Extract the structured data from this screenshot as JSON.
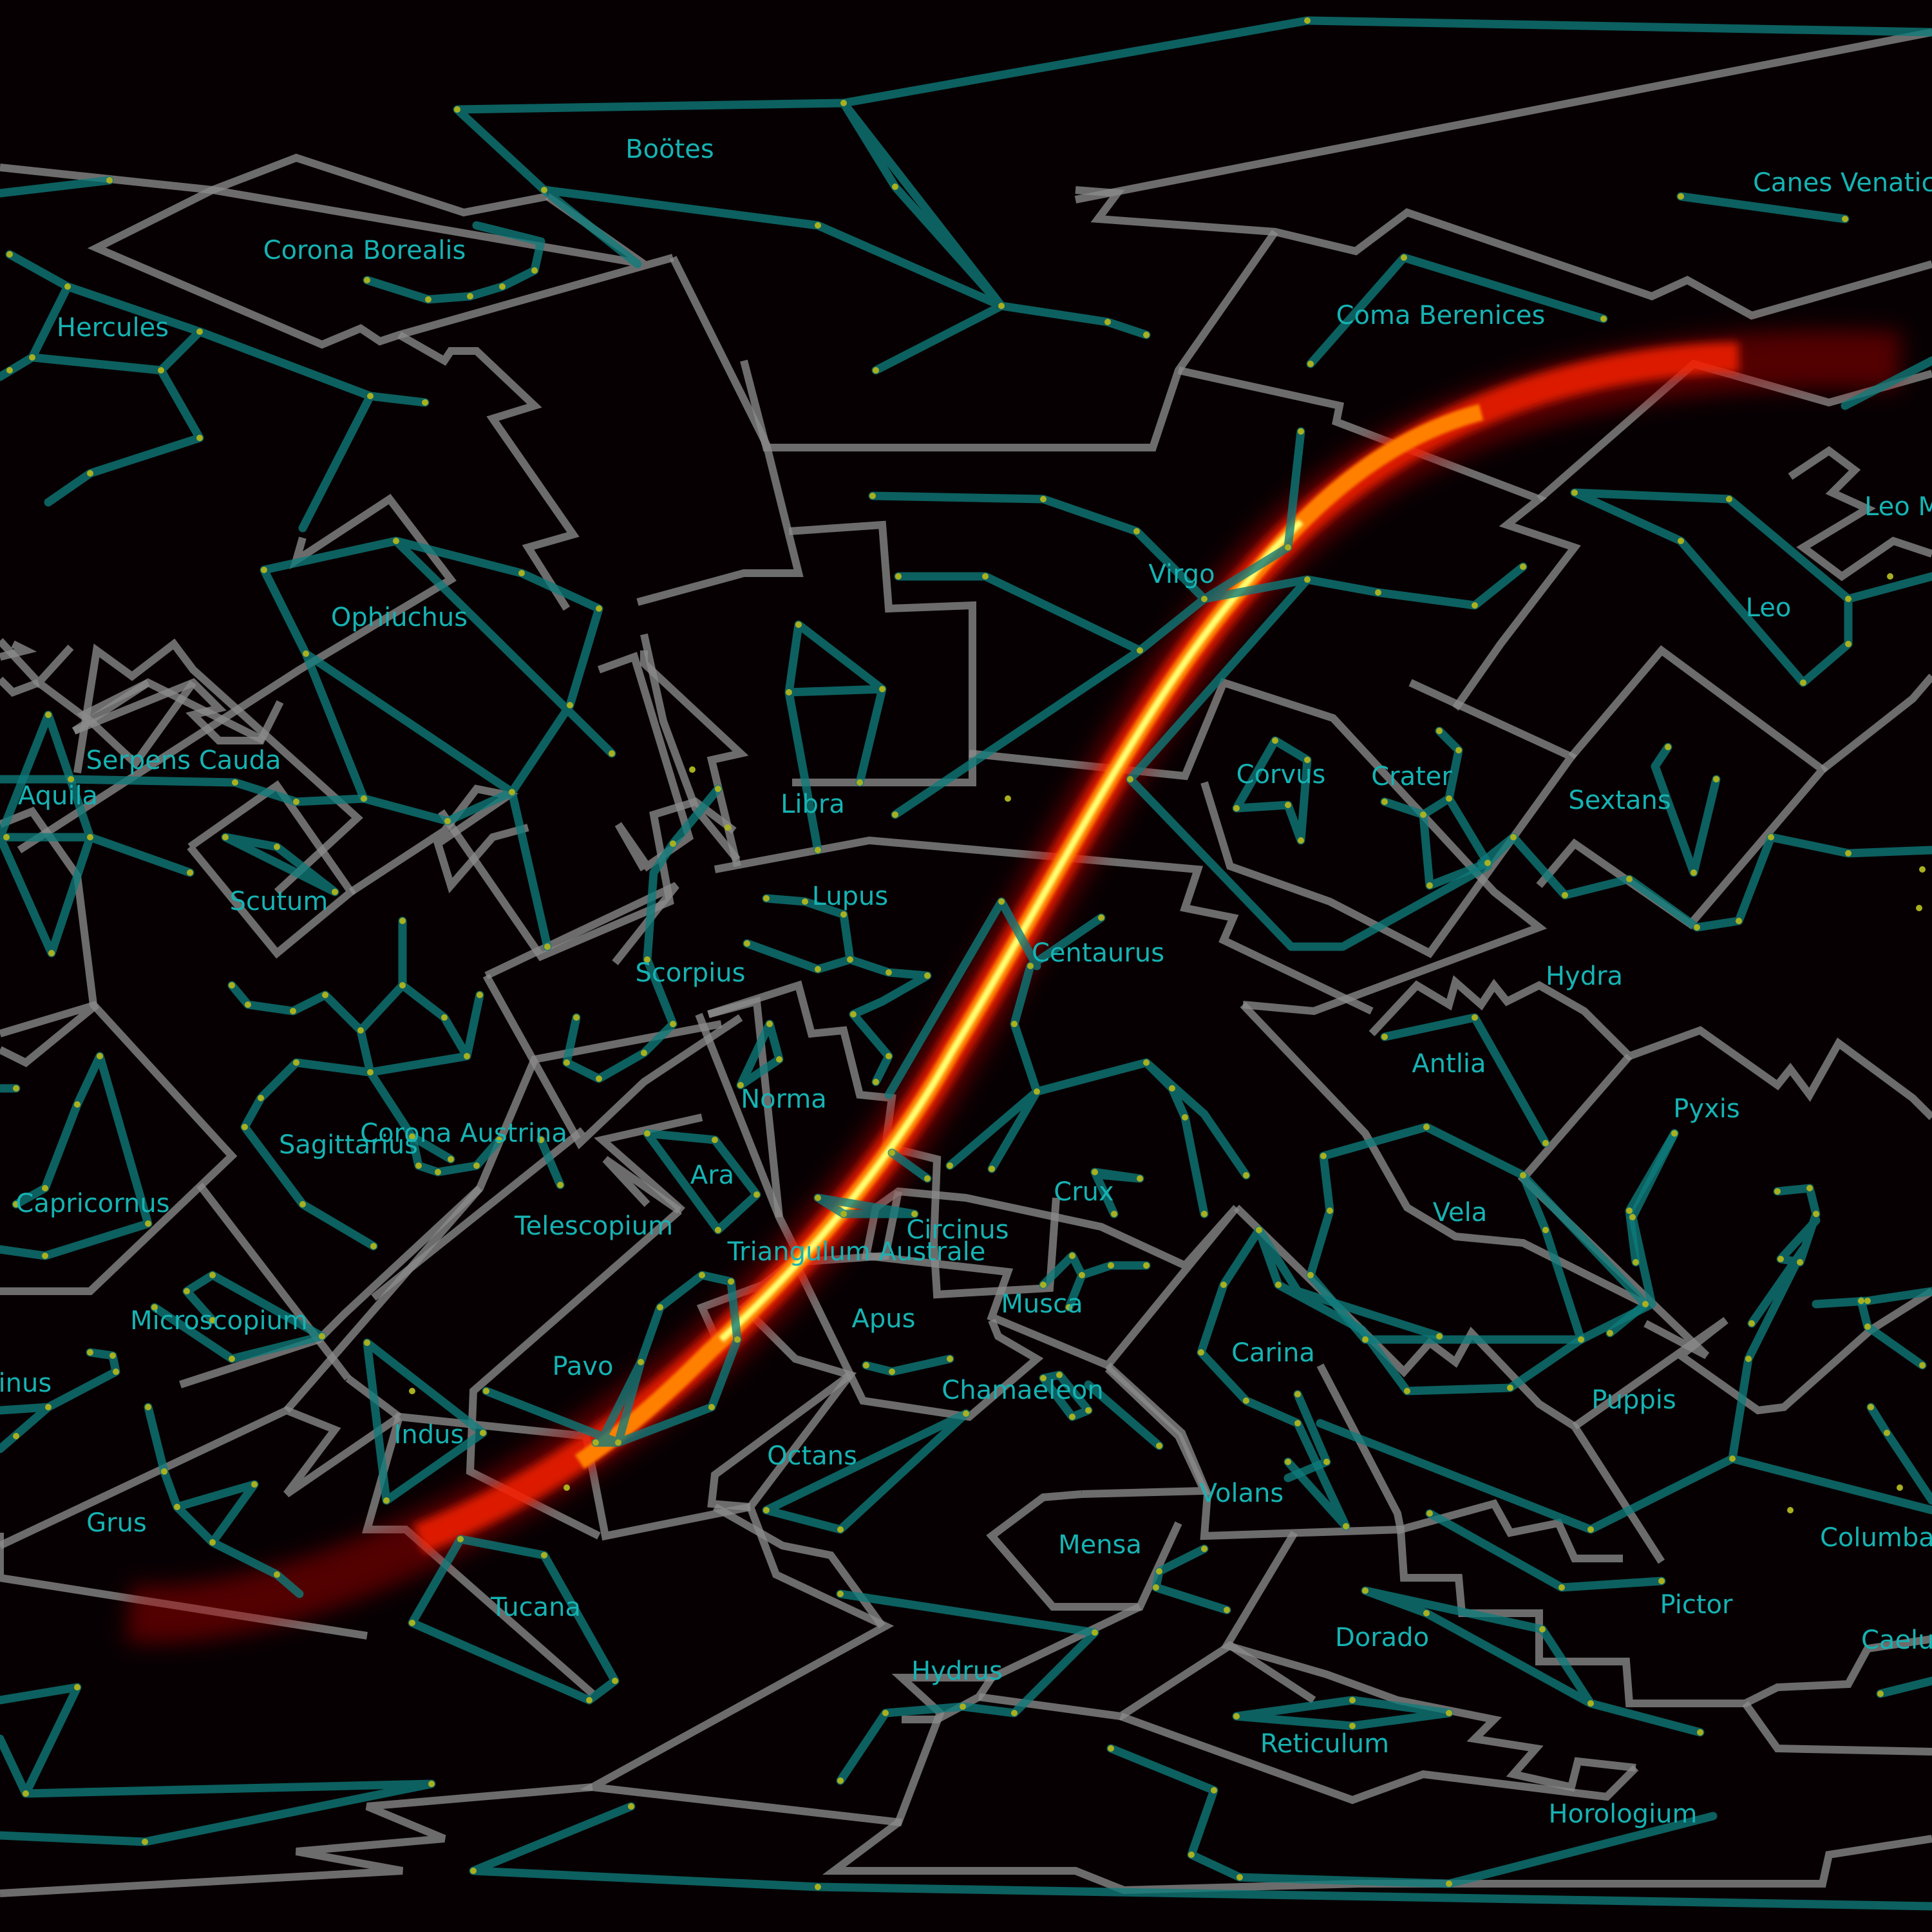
{
  "constellations": [
    "Boötes",
    "Canes Venatici",
    "Corona Borealis",
    "Hercules",
    "Coma Berenices",
    "Leo Minor",
    "Virgo",
    "Leo",
    "Ophiuchus",
    "Serpens Cauda",
    "Libra",
    "Corvus",
    "Crater",
    "Sextans",
    "Aquila",
    "Scutum",
    "Lupus",
    "Centaurus",
    "Scorpius",
    "Hydra",
    "Antlia",
    "Norma",
    "Pyxis",
    "Corona Austrina",
    "Sagittarius",
    "Ara",
    "Crux",
    "Vela",
    "Capricornus",
    "Telescopium",
    "Circinus",
    "Triangulum Australe",
    "Musca",
    "Apus",
    "Microscopium",
    "Carina",
    "Pavo",
    "Piscis Austrinus",
    "Chamaeleon",
    "Puppis",
    "Indus",
    "Octans",
    "Volans",
    "Grus",
    "Mensa",
    "Columba",
    "Pictor",
    "Tucana",
    "Dorado",
    "Caelum",
    "Hydrus",
    "Reticulum",
    "Horologium"
  ],
  "colors": {
    "background": "#070002",
    "boundary_lines": "#8a8a8a",
    "figure_lines": "#0e7b7b",
    "stars": "#a8b020",
    "labels": "#16b3b3",
    "band_core": "#ffff66",
    "band_mid": "#ff8000",
    "band_outer": "#d00000"
  }
}
